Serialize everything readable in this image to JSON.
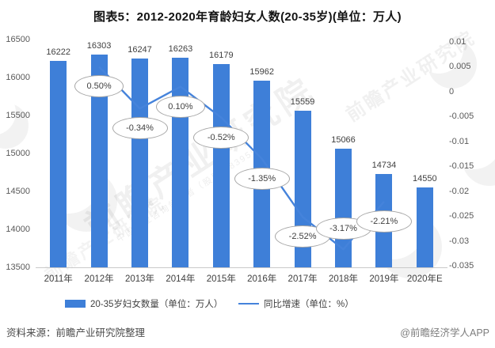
{
  "title": "图表5：2012-2020年育龄妇女人数(20-35岁)(单位：万人)",
  "source_note": "资料来源：前瞻产业研究院整理",
  "credit": "@前瞻经济学人APP",
  "watermark_text": "前瞻产业研究院",
  "watermark_subtext": "中国产业咨询领导者（股票：839599）",
  "legend": {
    "bar_label": "20-35岁妇女数量（单位：万人）",
    "line_label": "同比增速（单位：%）"
  },
  "colors": {
    "bar": "#3e7fd8",
    "line": "#4583db",
    "callout_border": "#a6a6a6",
    "callout_bg": "#ffffff",
    "axis_line": "#c9c9c9",
    "axis_text": "#595959",
    "value_text": "#404040"
  },
  "chart_data": {
    "type": "bar+line",
    "title": "图表5：2012-2020年育龄妇女人数(20-35岁)(单位：万人)",
    "categories": [
      "2011年",
      "2012年",
      "2013年",
      "2014年",
      "2015年",
      "2016年",
      "2017年",
      "2018年",
      "2019年",
      "2020年E"
    ],
    "series": [
      {
        "name": "20-35岁妇女数量（单位：万人）",
        "type": "bar",
        "axis": "left",
        "values": [
          16222,
          16303,
          16247,
          16263,
          16179,
          15962,
          15559,
          15066,
          14734,
          14550
        ]
      },
      {
        "name": "同比增速（单位：%）",
        "type": "line",
        "axis": "right",
        "values": [
          null,
          0.005,
          -0.0034,
          0.001,
          -0.0052,
          -0.0135,
          -0.0252,
          -0.0317,
          -0.0221,
          null
        ],
        "point_labels": [
          null,
          "0.50%",
          "-0.34%",
          "0.10%",
          "-0.52%",
          "-1.35%",
          "-2.52%",
          "-3.17%",
          "-2.21%",
          null
        ],
        "label_placement": [
          null,
          "below",
          "below",
          "below",
          "below",
          "below",
          "below",
          "above",
          "below",
          null
        ]
      }
    ],
    "left_axis": {
      "min": 13500,
      "max": 16500,
      "tick_labels": [
        "16500",
        "16000",
        "15500",
        "15000",
        "14500",
        "14000",
        "13500"
      ]
    },
    "right_axis": {
      "min": -0.035,
      "max": 0.01,
      "tick_labels": [
        "0.01",
        "0.005",
        "0",
        "-0.005",
        "-0.01",
        "-0.015",
        "-0.02",
        "-0.025",
        "-0.03",
        "-0.035"
      ]
    },
    "grid": false,
    "legend_position": "bottom"
  }
}
